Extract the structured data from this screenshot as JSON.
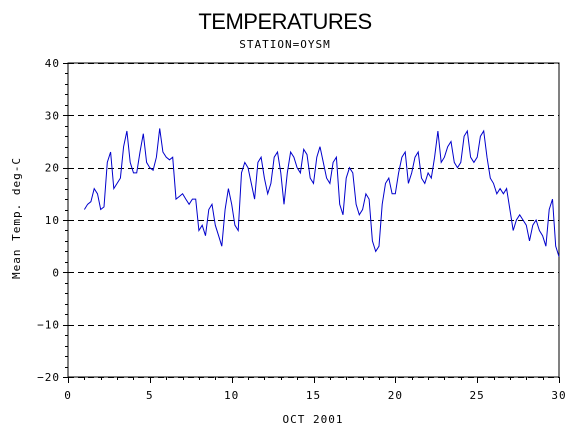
{
  "chart_data": {
    "type": "line",
    "title": "TEMPERATURES",
    "subtitle": "STATION=OYSM",
    "xlabel": "OCT 2001",
    "ylabel": "Mean Temp. deg-C",
    "xlim": [
      0,
      30
    ],
    "ylim": [
      -20,
      40
    ],
    "x_ticks": [
      0,
      5,
      10,
      15,
      20,
      25,
      30
    ],
    "y_ticks": [
      -20,
      -10,
      0,
      10,
      20,
      30,
      40
    ],
    "grid": "horizontal dashed at major y ticks",
    "colors": {
      "line": "#0000cc",
      "axes": "#000000",
      "grid": "#000000"
    },
    "series": [
      {
        "x": [
          1.0,
          1.2,
          1.4,
          1.6,
          1.8,
          2.0,
          2.2,
          2.4,
          2.6,
          2.8,
          3.0,
          3.2,
          3.4,
          3.6,
          3.8,
          4.0,
          4.2,
          4.4,
          4.6,
          4.8,
          5.0,
          5.2,
          5.4,
          5.6,
          5.8,
          6.0,
          6.2,
          6.4,
          6.6,
          6.8,
          7.0,
          7.2,
          7.4,
          7.6,
          7.8,
          8.0,
          8.2,
          8.4,
          8.6,
          8.8,
          9.0,
          9.2,
          9.4,
          9.6,
          9.8,
          10.0,
          10.2,
          10.4,
          10.6,
          10.8,
          11.0,
          11.2,
          11.4,
          11.6,
          11.8,
          12.0,
          12.2,
          12.4,
          12.6,
          12.8,
          13.0,
          13.2,
          13.4,
          13.6,
          13.8,
          14.0,
          14.2,
          14.4,
          14.6,
          14.8,
          15.0,
          15.2,
          15.4,
          15.6,
          15.8,
          16.0,
          16.2,
          16.4,
          16.6,
          16.8,
          17.0,
          17.2,
          17.4,
          17.6,
          17.8,
          18.0,
          18.2,
          18.4,
          18.6,
          18.8,
          19.0,
          19.2,
          19.4,
          19.6,
          19.8,
          20.0,
          20.2,
          20.4,
          20.6,
          20.8,
          21.0,
          21.2,
          21.4,
          21.6,
          21.8,
          22.0,
          22.2,
          22.4,
          22.6,
          22.8,
          23.0,
          23.2,
          23.4,
          23.6,
          23.8,
          24.0,
          24.2,
          24.4,
          24.6,
          24.8,
          25.0,
          25.2,
          25.4,
          25.6,
          25.8,
          26.0,
          26.2,
          26.4,
          26.6,
          26.8,
          27.0,
          27.2,
          27.4,
          27.6,
          27.8,
          28.0,
          28.2,
          28.4,
          28.6,
          28.8,
          29.0,
          29.2,
          29.4,
          29.6,
          29.8,
          30.0
        ],
        "y": [
          12,
          13,
          13.5,
          16,
          15,
          12,
          12.5,
          21,
          23,
          16,
          17,
          18,
          24,
          27,
          21,
          19,
          19,
          23,
          26.5,
          21,
          20,
          19.5,
          22,
          27.5,
          23,
          22,
          21.5,
          22,
          14,
          14.5,
          15,
          14,
          13,
          14,
          14,
          8,
          9,
          7,
          12,
          13,
          9,
          7,
          5,
          12,
          16,
          13,
          9,
          8,
          19,
          21,
          20,
          17,
          14,
          21,
          22,
          18,
          15,
          17,
          22,
          23,
          19,
          13,
          19,
          23,
          22,
          20,
          19,
          23.5,
          22.5,
          18,
          17,
          22,
          24,
          21,
          18,
          17,
          21,
          22,
          13,
          11,
          18,
          20,
          19,
          13,
          11,
          12,
          15,
          14,
          6,
          4,
          5,
          13,
          17,
          18,
          15,
          15,
          19,
          22,
          23,
          17,
          19,
          22,
          23,
          18,
          17,
          19,
          18,
          22,
          27,
          21,
          22,
          24,
          25,
          21,
          20,
          21,
          26,
          27,
          22,
          21,
          22,
          26,
          27,
          22,
          18,
          17,
          15,
          16,
          15,
          16,
          12,
          8,
          10,
          11,
          10,
          9,
          6,
          9,
          10,
          8,
          7,
          5,
          12,
          14,
          5,
          3
        ]
      }
    ]
  }
}
